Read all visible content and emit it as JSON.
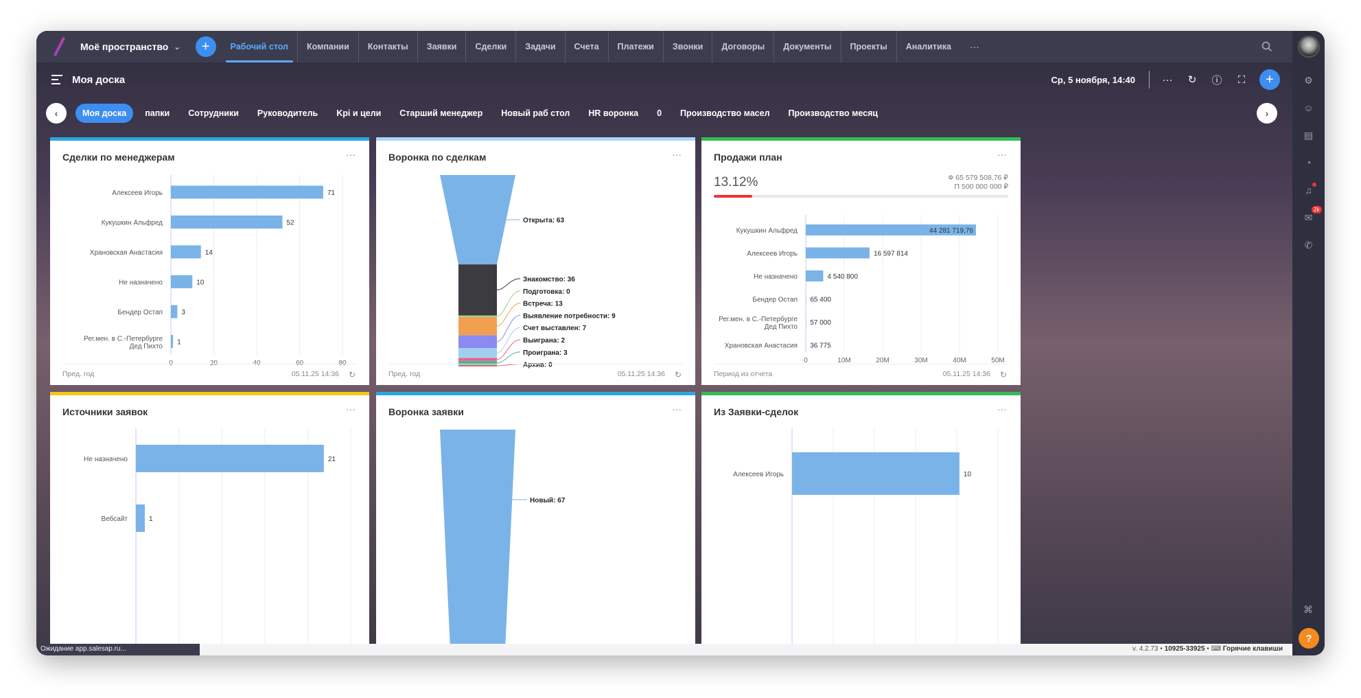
{
  "topnav": {
    "workspace": "Моё пространство",
    "tabs": [
      "Рабочий стол",
      "Компании",
      "Контакты",
      "Заявки",
      "Сделки",
      "Задачи",
      "Счета",
      "Платежи",
      "Звонки",
      "Договоры",
      "Документы",
      "Проекты",
      "Аналитика"
    ],
    "more": "···"
  },
  "header": {
    "title": "Моя доска",
    "datetime": "Ср, 5 ноября, 14:40"
  },
  "boards": [
    "Моя доска",
    "папки",
    "Сотрудники",
    "Руководитель",
    "Kpi и цели",
    "Старший менеджер",
    "Новый раб стол",
    "HR воронка",
    "0",
    "Производство масел",
    "Производство месяц"
  ],
  "cards": {
    "deals_by_managers": {
      "title": "Сделки по менеджерам",
      "footer": "Пред. год",
      "date": "05.11.25 14:36",
      "accent": "#2aa7e3"
    },
    "deals_funnel": {
      "title": "Воронка по сделкам",
      "footer": "Пред. год",
      "date": "05.11.25 14:36",
      "accent": "#a9d8f3"
    },
    "sales_plan": {
      "title": "Продажи план",
      "footer": "Период из отчета",
      "date": "05.11.25 14:36",
      "accent": "#33bb55",
      "percent": "13.12%",
      "fact": "Ф 65 579 508,76 ₽",
      "plan": "П 500 000 000 ₽",
      "progress": 0.1312
    },
    "lead_sources": {
      "title": "Источники заявок",
      "accent": "#f5c518"
    },
    "lead_funnel": {
      "title": "Воронка заявки",
      "accent": "#2aa7e3"
    },
    "from_leads": {
      "title": "Из Заявки-сделок",
      "accent": "#33bb55"
    }
  },
  "chart_data": [
    {
      "type": "bar",
      "orientation": "horizontal",
      "categories": [
        "Алексеев Игорь",
        "Кукушкин Альфред",
        "Храновская Анастасия",
        "Не назначено",
        "Бендер Остап",
        "Рег.мен. в С.-Петербурге Дед Пихто"
      ],
      "values": [
        71,
        52,
        14,
        10,
        3,
        1
      ],
      "xlim": [
        0,
        80
      ],
      "xticks": [
        0,
        20,
        40,
        60,
        80
      ]
    },
    {
      "type": "funnel",
      "categories": [
        "Открыта",
        "Знакомство",
        "Подготовка",
        "Встреча",
        "Выявление потребности",
        "Счет выставлен",
        "Выиграна",
        "Проиграна",
        "Архив"
      ],
      "values": [
        63,
        36,
        0,
        13,
        9,
        7,
        2,
        3,
        0
      ],
      "colors": [
        "#7ab3e8",
        "#3b3b40",
        "#8fd48a",
        "#f0a050",
        "#8a8af0",
        "#a0d0f0",
        "#f06080",
        "#50b0a0",
        "#e07070"
      ]
    },
    {
      "type": "bar",
      "orientation": "horizontal",
      "categories": [
        "Кукушкин Альфред",
        "Алексеев Игорь",
        "Не назначено",
        "Бендер Остап",
        "Рег.мен. в С.-Петербурге Дед Пихто",
        "Храновская Анастасия"
      ],
      "values": [
        44281719.76,
        16597814,
        4540800,
        65400,
        57000,
        36775
      ],
      "labels": [
        "44 281 719,76",
        "16 597 814",
        "4 540 800",
        "65 400",
        "57 000",
        "36 775"
      ],
      "xlim": [
        0,
        50000000
      ],
      "xticks": [
        "0",
        "10M",
        "20M",
        "30M",
        "40M",
        "50M"
      ]
    },
    {
      "type": "bar",
      "orientation": "horizontal",
      "categories": [
        "Не назначено",
        "Вебсайт"
      ],
      "values": [
        21,
        1
      ]
    },
    {
      "type": "funnel",
      "categories": [
        "Новый"
      ],
      "values": [
        67
      ]
    },
    {
      "type": "bar",
      "orientation": "horizontal",
      "categories": [
        "Алексеев Игорь"
      ],
      "values": [
        10
      ]
    }
  ],
  "status": {
    "loading": "Ожидание app.salesap.ru...",
    "version": "v. 4.2.73",
    "account": "10925-33925",
    "hotkeys": "Горячие клавиши"
  }
}
